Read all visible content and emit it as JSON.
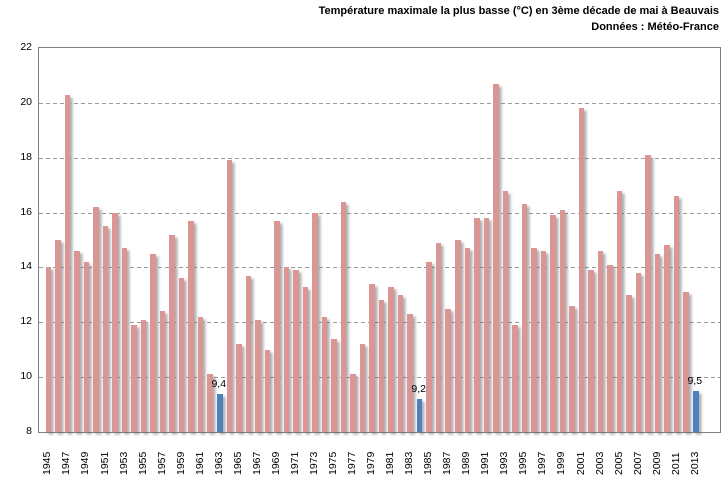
{
  "title": "Température maximale la plus basse (°C) en 3ème décade de mai à Beauvais",
  "subtitle": "Données : Météo-France",
  "chart_data": {
    "type": "bar",
    "title": "Température maximale la plus basse (°C) en 3ème décade de mai à Beauvais",
    "subtitle": "Données : Météo-France",
    "xlabel": "",
    "ylabel": "",
    "unit": "°C",
    "ylim": [
      8,
      22
    ],
    "yticks": [
      8,
      10,
      12,
      14,
      16,
      18,
      20,
      22
    ],
    "grid": "horizontal-dashed",
    "legend": "none",
    "years": [
      1945,
      1946,
      1947,
      1948,
      1949,
      1950,
      1951,
      1952,
      1953,
      1954,
      1955,
      1956,
      1957,
      1958,
      1959,
      1960,
      1961,
      1962,
      1963,
      1964,
      1965,
      1966,
      1967,
      1968,
      1969,
      1970,
      1971,
      1972,
      1973,
      1974,
      1975,
      1976,
      1977,
      1978,
      1979,
      1980,
      1981,
      1982,
      1983,
      1984,
      1985,
      1986,
      1987,
      1988,
      1989,
      1990,
      1991,
      1992,
      1993,
      1994,
      1995,
      1996,
      1997,
      1998,
      1999,
      2000,
      2001,
      2002,
      2003,
      2004,
      2005,
      2006,
      2007,
      2008,
      2009,
      2010,
      2011,
      2012,
      2013
    ],
    "values": [
      14.0,
      15.0,
      20.3,
      14.6,
      14.2,
      16.2,
      15.5,
      16.0,
      14.7,
      11.9,
      12.1,
      14.5,
      12.4,
      15.2,
      13.6,
      15.7,
      12.2,
      10.1,
      9.4,
      17.9,
      11.2,
      13.7,
      12.1,
      11.0,
      15.7,
      14.0,
      13.9,
      13.3,
      16.0,
      12.2,
      11.4,
      16.4,
      10.1,
      11.2,
      13.4,
      12.8,
      13.3,
      13.0,
      12.3,
      9.2,
      14.2,
      14.9,
      12.5,
      15.0,
      14.7,
      15.8,
      15.8,
      20.7,
      16.8,
      11.9,
      16.3,
      14.7,
      14.6,
      15.9,
      16.1,
      12.6,
      19.8,
      13.9,
      14.6,
      14.1,
      16.8,
      13.0,
      13.8,
      18.1,
      14.5,
      14.8,
      16.6,
      13.1,
      9.5
    ],
    "xtick_labels": [
      "1945",
      "1947",
      "1949",
      "1951",
      "1953",
      "1955",
      "1957",
      "1959",
      "1961",
      "1963",
      "1965",
      "1967",
      "1969",
      "1971",
      "1973",
      "1975",
      "1977",
      "1979",
      "1981",
      "1983",
      "1985",
      "1987",
      "1989",
      "1991",
      "1993",
      "1995",
      "1997",
      "1999",
      "2001",
      "2003",
      "2005",
      "2007",
      "2009",
      "2011",
      "2013"
    ],
    "highlighted_years": [
      1963,
      1984,
      2013
    ],
    "data_labels": {
      "1963": "9,4",
      "1984": "9,2",
      "2013": "9,5"
    },
    "colors": {
      "bar": "#D99694",
      "highlight": "#4F81BD",
      "gridline": "#9A9A9A",
      "plot_border": "#808080",
      "text": "#000000"
    }
  }
}
